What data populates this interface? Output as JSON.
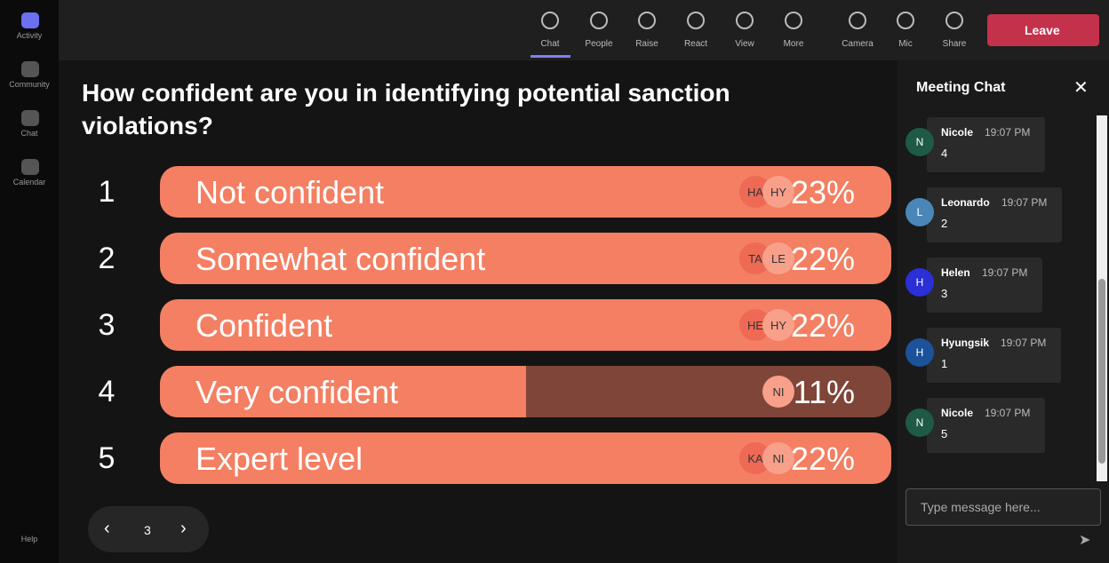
{
  "sidebar": {
    "items": [
      "Activity",
      "Community",
      "Chat",
      "Calendar"
    ],
    "help": "Help"
  },
  "toolbar": {
    "items": [
      "Chat",
      "People",
      "Raise",
      "React",
      "View",
      "More",
      "Camera",
      "Mic",
      "Share"
    ],
    "leave": "Leave"
  },
  "poll": {
    "question": "How confident are you in identifying potential sanction violations?",
    "options": [
      {
        "number": "1",
        "label": "Not confident",
        "voters": [
          "HA",
          "HY"
        ],
        "percent": "23%"
      },
      {
        "number": "2",
        "label": "Somewhat confident",
        "voters": [
          "TA",
          "LE"
        ],
        "percent": "22%"
      },
      {
        "number": "3",
        "label": "Confident",
        "voters": [
          "HE",
          "HY"
        ],
        "percent": "22%"
      },
      {
        "number": "4",
        "label": "Very confident",
        "voters": [
          "NI"
        ],
        "percent": "11%"
      },
      {
        "number": "5",
        "label": "Expert level",
        "voters": [
          "KA",
          "NI"
        ],
        "percent": "22%"
      }
    ],
    "page": "3"
  },
  "chat": {
    "title": "Meeting Chat",
    "messages": [
      {
        "initial": "N",
        "name": "Nicole",
        "time": "19:07 PM",
        "text": "4"
      },
      {
        "initial": "L",
        "name": "Leonardo",
        "time": "19:07 PM",
        "text": "2"
      },
      {
        "initial": "H",
        "name": "Helen",
        "time": "19:07 PM",
        "text": "3"
      },
      {
        "initial": "H",
        "name": "Hyungsik",
        "time": "19:07 PM",
        "text": "1"
      },
      {
        "initial": "N",
        "name": "Nicole",
        "time": "19:07 PM",
        "text": "5"
      }
    ],
    "placeholder": "Type message here..."
  }
}
